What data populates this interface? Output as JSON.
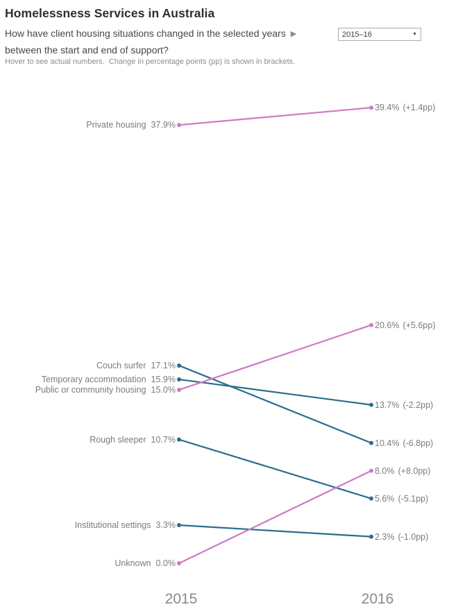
{
  "header": {
    "title": "Homelessness Services in Australia",
    "subtitle_line1": "How have client housing situations changed in the selected years",
    "subtitle_line2": "between the start and end of support?",
    "param_arrow_icon": "▶",
    "dropdown": {
      "value": "2015–16",
      "caret_icon": "▼"
    },
    "hint": "Hover to see actual numbers.  Change in percentage points (pp) is shown in brackets."
  },
  "chart_data": {
    "type": "line",
    "subtype": "slopegraph",
    "title": "Homelessness Services in Australia",
    "x_categories": [
      "2015",
      "2016"
    ],
    "unit": "percent of clients",
    "ylim": [
      0,
      42
    ],
    "grid": false,
    "legend": "none",
    "colors": {
      "increase": "#cc7ac4",
      "decrease": "#2b6c8e"
    },
    "series": [
      {
        "label": "Private housing",
        "start": 37.9,
        "end": 39.4,
        "start_label": "37.9%",
        "end_label": "39.4%",
        "change_label": "(+1.4pp)",
        "direction": "up"
      },
      {
        "label": "Couch surfer",
        "start": 17.1,
        "end": 10.4,
        "start_label": "17.1%",
        "end_label": "10.4%",
        "change_label": "(-6.8pp)",
        "direction": "down"
      },
      {
        "label": "Temporary accommodation",
        "start": 15.9,
        "end": 13.7,
        "start_label": "15.9%",
        "end_label": "13.7%",
        "change_label": "(-2.2pp)",
        "direction": "down"
      },
      {
        "label": "Public or community housing",
        "start": 15.0,
        "end": 20.6,
        "start_label": "15.0%",
        "end_label": "20.6%",
        "change_label": "(+5.6pp)",
        "direction": "up"
      },
      {
        "label": "Rough sleeper",
        "start": 10.7,
        "end": 5.6,
        "start_label": "10.7%",
        "end_label": "5.6%",
        "change_label": "(-5.1pp)",
        "direction": "down"
      },
      {
        "label": "Institutional settings",
        "start": 3.3,
        "end": 2.3,
        "start_label": "3.3%",
        "end_label": "2.3%",
        "change_label": "(-1.0pp)",
        "direction": "down"
      },
      {
        "label": "Unknown",
        "start": 0.0,
        "end": 8.0,
        "start_label": "0.0%",
        "end_label": "8.0%",
        "change_label": "(+8.0pp)",
        "direction": "up"
      }
    ]
  }
}
